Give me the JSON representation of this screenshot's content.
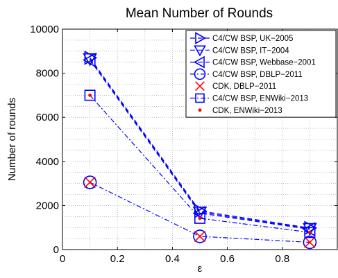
{
  "chart_data": {
    "type": "line",
    "title": "Mean Number of Rounds",
    "xlabel": "ε",
    "ylabel": "Number of rounds",
    "xlim": [
      0,
      1
    ],
    "ylim": [
      0,
      10000
    ],
    "xticks": [
      0,
      0.2,
      0.4,
      0.6,
      0.8
    ],
    "xtick_labels": [
      "0",
      "0.2",
      "0.4",
      "0.6",
      "0.8"
    ],
    "yticks": [
      0,
      2000,
      4000,
      6000,
      8000,
      10000
    ],
    "ytick_labels": [
      "0",
      "2000",
      "4000",
      "6000",
      "8000",
      "10000"
    ],
    "grid": true,
    "legend_position": "top-right",
    "x": [
      0.1,
      0.5,
      0.9
    ],
    "series": [
      {
        "name": "C4/CW BSP, UK−2005",
        "marker": "triangle-right",
        "line": "dashed",
        "color": "#0000ff",
        "values": [
          8700,
          1750,
          980
        ]
      },
      {
        "name": "C4/CW BSP, IT−2004",
        "marker": "triangle-down",
        "line": "dashed",
        "color": "#0000ff",
        "values": [
          8650,
          1700,
          950
        ]
      },
      {
        "name": "C4/CW BSP, Webbase−2001",
        "marker": "triangle-left",
        "line": "dashed",
        "color": "#0000ff",
        "values": [
          8600,
          1650,
          920
        ]
      },
      {
        "name": "C4/CW BSP, DBLP−2011",
        "marker": "circle",
        "line": "dashdot",
        "color": "#0000ff",
        "values": [
          3050,
          600,
          330
        ]
      },
      {
        "name": "CDK, DBLP−2011",
        "marker": "x",
        "line": "none",
        "color": "#ff0000",
        "values": [
          3050,
          600,
          330
        ]
      },
      {
        "name": "C4/CW BSP, ENWiki−2013",
        "marker": "square",
        "line": "dashdot",
        "color": "#0000ff",
        "values": [
          7000,
          1420,
          780
        ]
      },
      {
        "name": "CDK, ENWiki−2013",
        "marker": "dot",
        "line": "none",
        "color": "#ff0000",
        "values": [
          7000,
          1420,
          780
        ]
      }
    ]
  }
}
